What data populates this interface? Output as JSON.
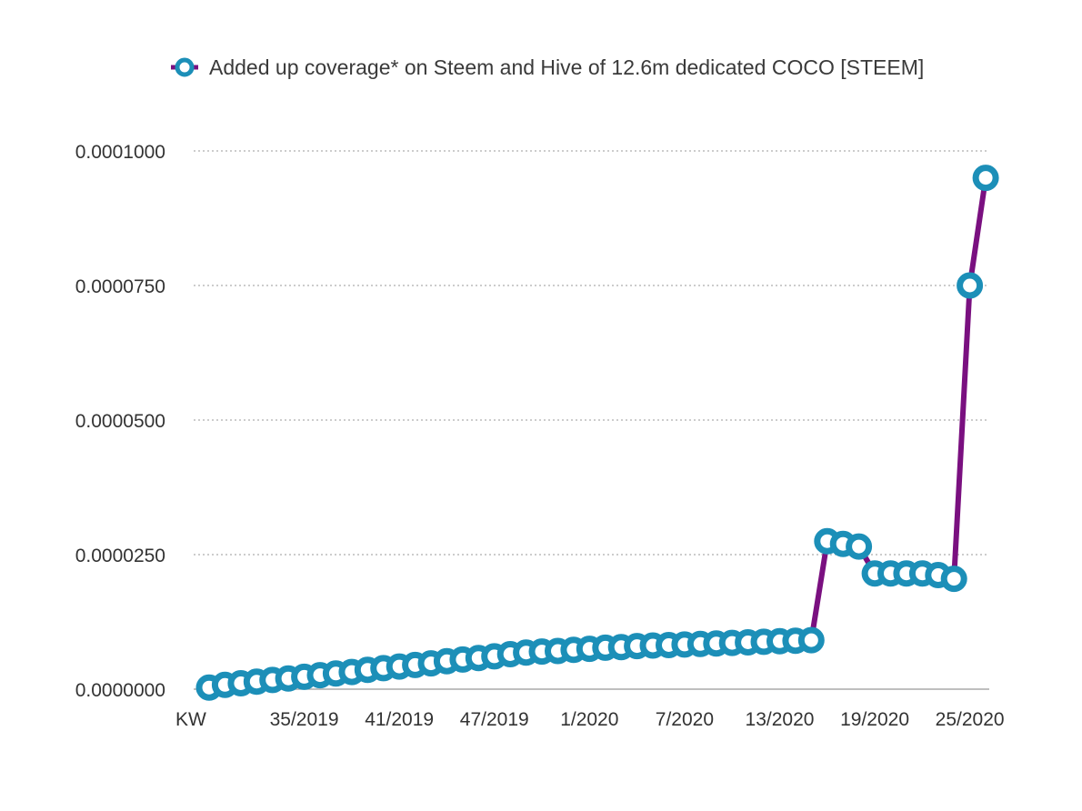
{
  "chart_data": {
    "type": "line",
    "legend": [
      {
        "label": "Added up coverage* on Steem and Hive of 12.6m dedicated COCO [STEEM]",
        "line_color": "#7a1080",
        "marker_color": "#1c8fb8"
      }
    ],
    "x_tick_labels": [
      "KW",
      "35/2019",
      "41/2019",
      "47/2019",
      "1/2020",
      "7/2020",
      "13/2020",
      "19/2020",
      "25/2020"
    ],
    "y_tick_labels": [
      "0.0000000",
      "0.0000250",
      "0.0000500",
      "0.0000750",
      "0.0001000"
    ],
    "ylim": [
      0,
      0.0001
    ],
    "grid": "horizontal dotted",
    "legend_position": "top",
    "series": [
      {
        "name": "Added up coverage* on Steem and Hive of 12.6m dedicated COCO [STEEM]",
        "values": [
          3e-07,
          8e-07,
          1.1e-06,
          1.4e-06,
          1.7e-06,
          2e-06,
          2.3e-06,
          2.6e-06,
          2.9e-06,
          3.2e-06,
          3.6e-06,
          3.9e-06,
          4.2e-06,
          4.5e-06,
          4.8e-06,
          5.2e-06,
          5.5e-06,
          5.8e-06,
          6.1e-06,
          6.5e-06,
          6.8e-06,
          7e-06,
          7.1e-06,
          7.3e-06,
          7.5e-06,
          7.7e-06,
          7.8e-06,
          8e-06,
          8.1e-06,
          8.2e-06,
          8.3e-06,
          8.4e-06,
          8.5e-06,
          8.6e-06,
          8.7e-06,
          8.8e-06,
          8.9e-06,
          9e-06,
          9.1e-06,
          2.75e-05,
          2.7e-05,
          2.65e-05,
          2.15e-05,
          2.15e-05,
          2.15e-05,
          2.15e-05,
          2.12e-05,
          2.05e-05,
          7.5e-05,
          9.5e-05
        ]
      }
    ]
  }
}
